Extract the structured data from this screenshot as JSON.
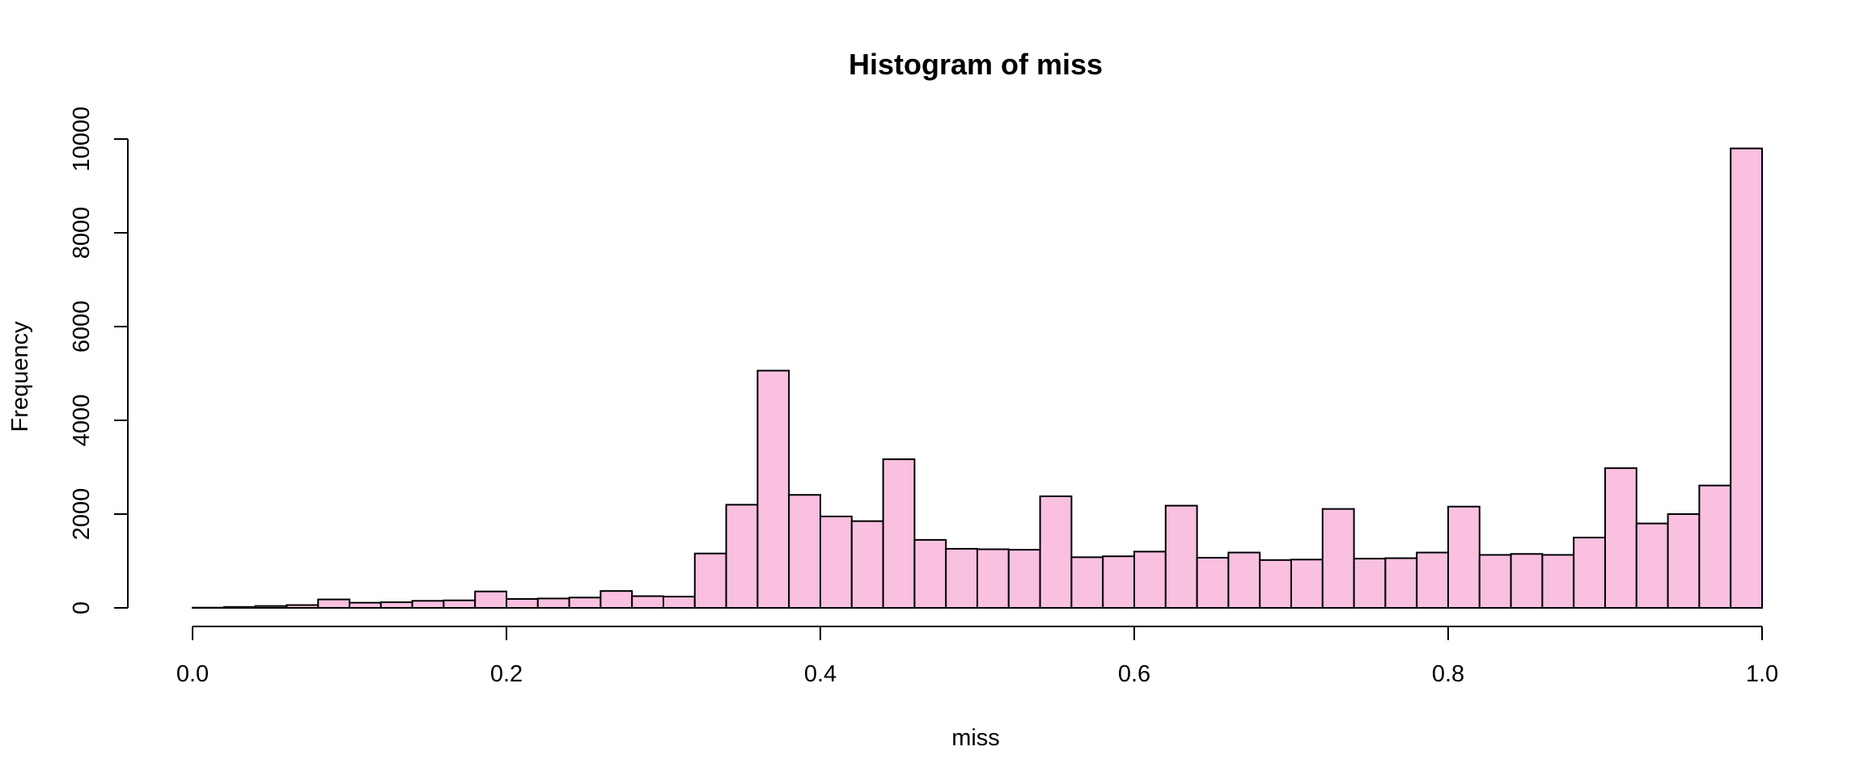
{
  "chart_data": {
    "type": "bar",
    "title": "Histogram of miss",
    "xlabel": "miss",
    "ylabel": "Frequency",
    "xlim": [
      0,
      1
    ],
    "ylim": [
      0,
      10000
    ],
    "x_ticks": [
      0.0,
      0.2,
      0.4,
      0.6,
      0.8,
      1.0
    ],
    "x_tick_labels": [
      "0.0",
      "0.2",
      "0.4",
      "0.6",
      "0.8",
      "1.0"
    ],
    "y_ticks": [
      0,
      2000,
      4000,
      6000,
      8000,
      10000
    ],
    "y_tick_labels": [
      "0",
      "2000",
      "4000",
      "6000",
      "8000",
      "10000"
    ],
    "bin_width": 0.02,
    "bin_start": 0,
    "values": [
      5,
      20,
      40,
      60,
      180,
      110,
      120,
      150,
      160,
      350,
      190,
      200,
      220,
      360,
      250,
      240,
      1160,
      2200,
      5060,
      2410,
      1950,
      1850,
      3170,
      1450,
      1260,
      1250,
      1240,
      2380,
      1080,
      1100,
      1200,
      2180,
      1070,
      1180,
      1020,
      1030,
      2110,
      1050,
      1060,
      1180,
      2160,
      1130,
      1150,
      1130,
      1500,
      2980,
      1800,
      2000,
      2610,
      9800
    ],
    "grid": false,
    "legend": "none",
    "bar_color": "#F9C0E0",
    "edge_color": "#000000"
  }
}
